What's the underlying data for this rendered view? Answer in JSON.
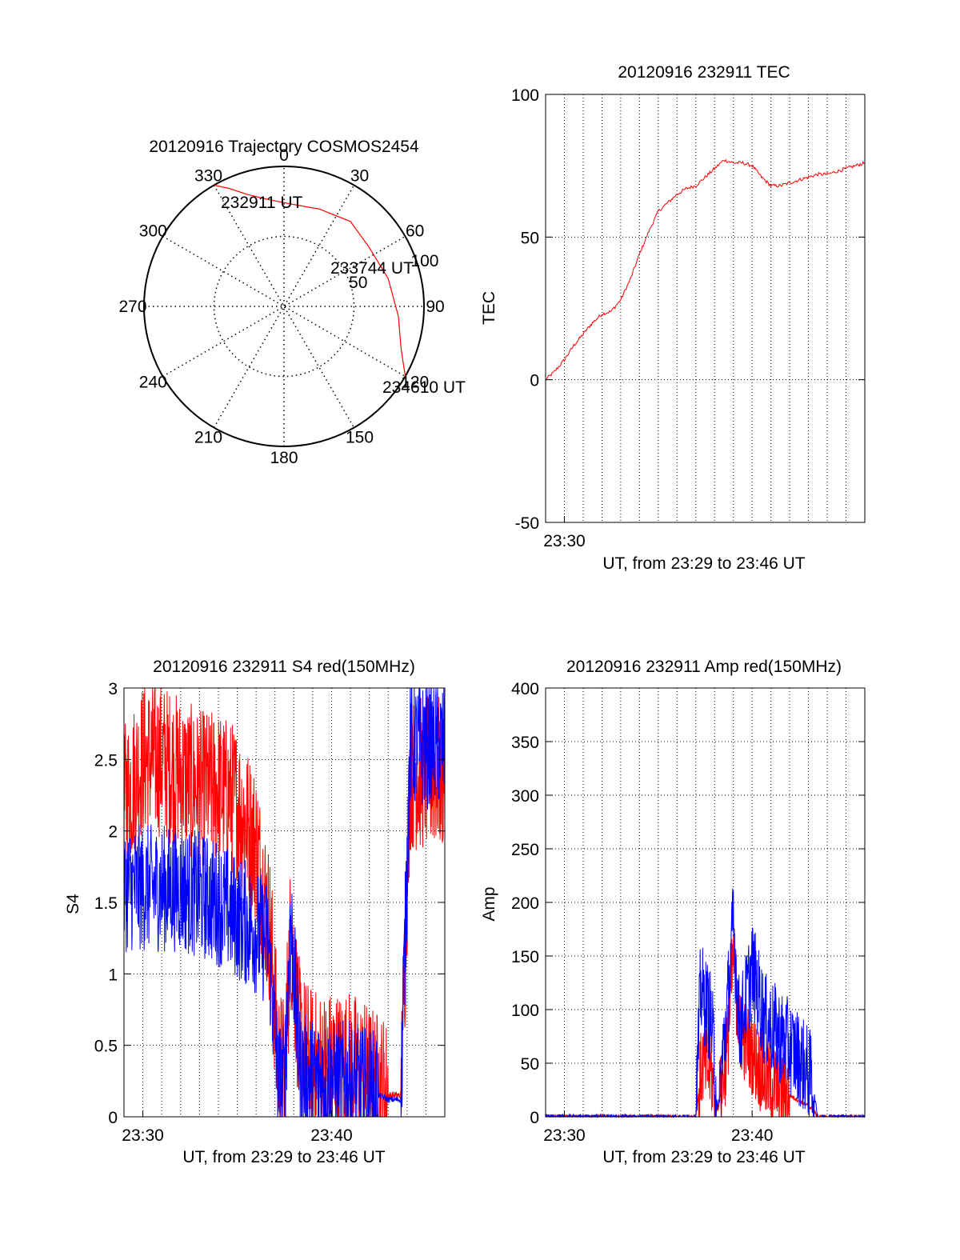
{
  "chart_data": [
    {
      "type": "polar",
      "title": "20120916 Trajectory COSMOS2454",
      "angle_ticks": [
        "0",
        "30",
        "60",
        "90",
        "120",
        "150",
        "180",
        "210",
        "240",
        "270",
        "300",
        "330"
      ],
      "radial_ticks": [
        "50",
        "100"
      ],
      "rlim": [
        0,
        100
      ],
      "grid": true,
      "colors": {
        "trajectory": "#ff0000"
      },
      "trajectory": [
        {
          "azimuth": 330,
          "zenith": 100
        },
        {
          "azimuth": 335,
          "zenith": 93
        },
        {
          "azimuth": 342,
          "zenith": 84
        },
        {
          "azimuth": 352,
          "zenith": 77
        },
        {
          "azimuth": 6,
          "zenith": 73
        },
        {
          "azimuth": 20,
          "zenith": 74
        },
        {
          "azimuth": 38,
          "zenith": 77
        },
        {
          "azimuth": 55,
          "zenith": 74
        },
        {
          "azimuth": 75,
          "zenith": 77
        },
        {
          "azimuth": 95,
          "zenith": 82
        },
        {
          "azimuth": 110,
          "zenith": 89
        },
        {
          "azimuth": 120,
          "zenith": 100
        }
      ],
      "annotations": [
        "232911 UT",
        "233744 UT",
        "234610 UT"
      ]
    },
    {
      "type": "line",
      "title": "20120916 232911 TEC",
      "xlabel": "UT, from 23:29 to 23:46 UT",
      "ylabel": "TEC",
      "xlim": [
        "23:29",
        "23:46"
      ],
      "ylim": [
        -50,
        100
      ],
      "x_ticks": [
        "23:30"
      ],
      "y_ticks": [
        "-50",
        "0",
        "50",
        "100"
      ],
      "grid": true,
      "series": [
        {
          "color": "#ff0000",
          "points": [
            [
              "23:29:00",
              0
            ],
            [
              "23:29:30",
              3
            ],
            [
              "23:30:00",
              7
            ],
            [
              "23:30:30",
              12
            ],
            [
              "23:31:00",
              16
            ],
            [
              "23:31:30",
              20
            ],
            [
              "23:32:00",
              23
            ],
            [
              "23:32:30",
              24
            ],
            [
              "23:33:00",
              28
            ],
            [
              "23:33:30",
              35
            ],
            [
              "23:34:00",
              44
            ],
            [
              "23:34:30",
              52
            ],
            [
              "23:35:00",
              59
            ],
            [
              "23:35:30",
              62
            ],
            [
              "23:36:00",
              65
            ],
            [
              "23:36:30",
              67
            ],
            [
              "23:37:00",
              68
            ],
            [
              "23:37:30",
              71
            ],
            [
              "23:38:00",
              74
            ],
            [
              "23:38:30",
              77
            ],
            [
              "23:39:00",
              76
            ],
            [
              "23:39:30",
              76
            ],
            [
              "23:40:00",
              75
            ],
            [
              "23:40:30",
              71
            ],
            [
              "23:41:00",
              68
            ],
            [
              "23:41:30",
              68
            ],
            [
              "23:42:00",
              69
            ],
            [
              "23:42:30",
              70
            ],
            [
              "23:43:00",
              71
            ],
            [
              "23:43:30",
              72
            ],
            [
              "23:44:00",
              72
            ],
            [
              "23:44:30",
              73
            ],
            [
              "23:45:00",
              74
            ],
            [
              "23:45:30",
              75
            ],
            [
              "23:46:00",
              76
            ]
          ]
        }
      ]
    },
    {
      "type": "line",
      "title": "20120916 232911 S4 red(150MHz)",
      "xlabel": "UT, from 23:29 to 23:46 UT",
      "ylabel": "S4",
      "xlim": [
        "23:29",
        "23:46"
      ],
      "ylim": [
        0,
        3
      ],
      "x_ticks": [
        "23:30",
        "23:40"
      ],
      "y_ticks": [
        "0",
        "0.5",
        "1",
        "1.5",
        "2",
        "2.5",
        "3"
      ],
      "grid": true,
      "series": [
        {
          "color": "#ff0000",
          "noise": 0.55,
          "points": [
            [
              "23:29:00",
              2.2
            ],
            [
              "23:30:00",
              2.5
            ],
            [
              "23:31:00",
              2.5
            ],
            [
              "23:32:00",
              2.4
            ],
            [
              "23:33:00",
              2.3
            ],
            [
              "23:34:00",
              2.3
            ],
            [
              "23:35:00",
              2.2
            ],
            [
              "23:36:00",
              1.9
            ],
            [
              "23:36:45",
              1.3
            ],
            [
              "23:37:10",
              0.4
            ],
            [
              "23:37:30",
              0.3
            ],
            [
              "23:37:50",
              1.3
            ],
            [
              "23:38:20",
              0.5
            ],
            [
              "23:39:00",
              0.35
            ],
            [
              "23:40:00",
              0.35
            ],
            [
              "23:41:00",
              0.35
            ],
            [
              "23:42:00",
              0.25
            ],
            [
              "23:43:00",
              0.15
            ],
            [
              "23:43:40",
              0.15
            ],
            [
              "23:44:10",
              2.4
            ],
            [
              "23:45:00",
              2.4
            ],
            [
              "23:46:00",
              2.4
            ]
          ]
        },
        {
          "color": "#0000ff",
          "noise": 0.45,
          "points": [
            [
              "23:29:00",
              1.6
            ],
            [
              "23:30:00",
              1.6
            ],
            [
              "23:31:00",
              1.6
            ],
            [
              "23:32:00",
              1.6
            ],
            [
              "23:33:00",
              1.55
            ],
            [
              "23:34:00",
              1.5
            ],
            [
              "23:35:00",
              1.4
            ],
            [
              "23:36:00",
              1.3
            ],
            [
              "23:36:40",
              1.2
            ],
            [
              "23:37:10",
              0.25
            ],
            [
              "23:37:30",
              0.2
            ],
            [
              "23:37:50",
              1.4
            ],
            [
              "23:38:20",
              0.3
            ],
            [
              "23:39:00",
              0.25
            ],
            [
              "23:40:00",
              0.25
            ],
            [
              "23:41:00",
              0.22
            ],
            [
              "23:42:00",
              0.18
            ],
            [
              "23:43:00",
              0.12
            ],
            [
              "23:43:40",
              0.12
            ],
            [
              "23:44:10",
              2.6
            ],
            [
              "23:45:00",
              2.6
            ],
            [
              "23:46:00",
              2.6
            ]
          ]
        }
      ]
    },
    {
      "type": "line",
      "title": "20120916 232911 Amp red(150MHz)",
      "xlabel": "UT, from 23:29 to 23:46 UT",
      "ylabel": "Amp",
      "xlim": [
        "23:29",
        "23:46"
      ],
      "ylim": [
        0,
        400
      ],
      "x_ticks": [
        "23:30",
        "23:40"
      ],
      "y_ticks": [
        "0",
        "50",
        "100",
        "150",
        "200",
        "250",
        "300",
        "350",
        "400"
      ],
      "grid": true,
      "series": [
        {
          "color": "#ff0000",
          "noise": 40,
          "points": [
            [
              "23:29:00",
              0
            ],
            [
              "23:37:00",
              0
            ],
            [
              "23:37:20",
              50
            ],
            [
              "23:37:50",
              40
            ],
            [
              "23:38:10",
              5
            ],
            [
              "23:38:40",
              60
            ],
            [
              "23:39:00",
              150
            ],
            [
              "23:39:20",
              80
            ],
            [
              "23:40:00",
              60
            ],
            [
              "23:40:40",
              35
            ],
            [
              "23:41:30",
              25
            ],
            [
              "23:42:30",
              15
            ],
            [
              "23:43:10",
              8
            ],
            [
              "23:43:30",
              0
            ],
            [
              "23:46:00",
              0
            ]
          ]
        },
        {
          "color": "#0000ff",
          "noise": 45,
          "points": [
            [
              "23:29:00",
              0
            ],
            [
              "23:37:00",
              0
            ],
            [
              "23:37:15",
              120
            ],
            [
              "23:37:50",
              90
            ],
            [
              "23:38:10",
              5
            ],
            [
              "23:38:40",
              100
            ],
            [
              "23:39:00",
              180
            ],
            [
              "23:39:20",
              80
            ],
            [
              "23:40:00",
              140
            ],
            [
              "23:40:40",
              90
            ],
            [
              "23:41:30",
              75
            ],
            [
              "23:42:30",
              55
            ],
            [
              "23:43:10",
              35
            ],
            [
              "23:43:30",
              0
            ],
            [
              "23:46:00",
              0
            ]
          ]
        }
      ]
    }
  ]
}
